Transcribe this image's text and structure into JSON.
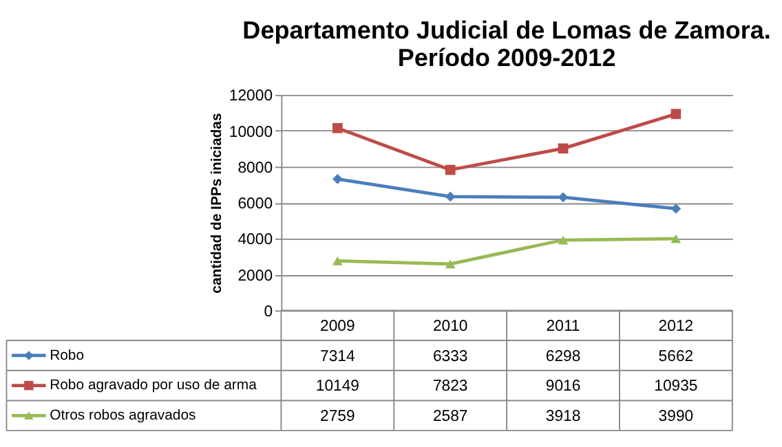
{
  "chart_data": {
    "type": "line",
    "title": "Departamento Judicial de Lomas de Zamora.\nPeríodo  2009-2012",
    "ylabel": "cantidad de IPPs iniciadas",
    "categories": [
      "2009",
      "2010",
      "2011",
      "2012"
    ],
    "series": [
      {
        "name": "Robo",
        "color": "#4a7ebb",
        "marker": "diamond",
        "values": [
          7314,
          6333,
          6298,
          5662
        ]
      },
      {
        "name": "Robo agravado por uso de arma",
        "color": "#be4b48",
        "marker": "square",
        "values": [
          10149,
          7823,
          9016,
          10935
        ]
      },
      {
        "name": "Otros robos agravados",
        "color": "#98b954",
        "marker": "triangle",
        "values": [
          2759,
          2587,
          3918,
          3990
        ]
      }
    ],
    "ylim": [
      0,
      12000
    ],
    "yticks": [
      0,
      2000,
      4000,
      6000,
      8000,
      10000,
      12000
    ],
    "grid": "y",
    "data_labels": true,
    "legend": "bottom left"
  }
}
